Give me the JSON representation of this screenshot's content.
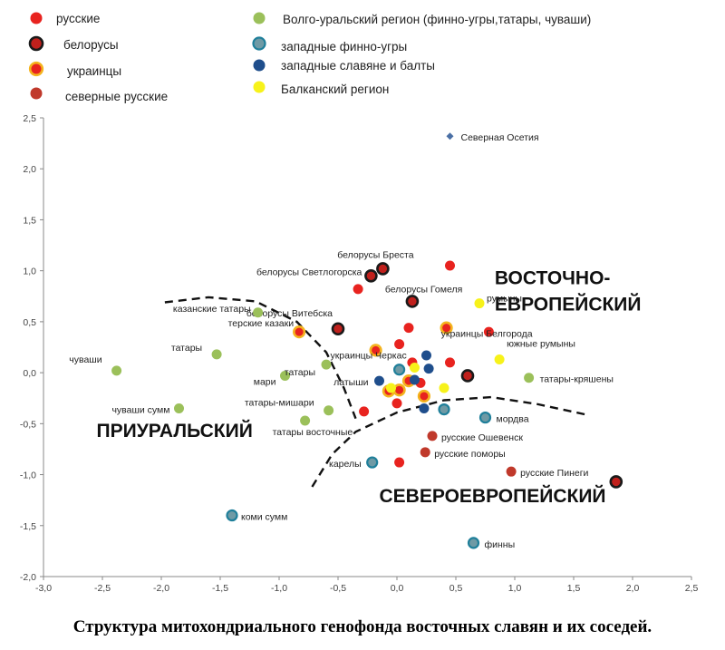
{
  "caption": "Структура митохондриального генофонда восточных славян и их соседей.",
  "colors": {
    "russian": "#e8231f",
    "belarus_fill": "#c0201c",
    "belarus_ring": "#1a1a1a",
    "ukraine_fill": "#e8231f",
    "ukraine_ring": "#f4b31e",
    "north_russian": "#c0392b",
    "volga": "#9bc05a",
    "west_finno_fill": "#6f9aa5",
    "west_finno_ring": "#1f7f9a",
    "west_slav": "#1f4e8c",
    "balkan": "#f7f21a",
    "ossetia": "#4a6fa5"
  },
  "chart_data": {
    "type": "scatter",
    "title": "",
    "xlabel": "",
    "ylabel": "",
    "xlim": [
      -3.0,
      2.5
    ],
    "ylim": [
      -2.0,
      2.5
    ],
    "grid": false,
    "xticks": [
      "-3,0",
      "-2,5",
      "-2,0",
      "-1,5",
      "-1,0",
      "-0,5",
      "0,0",
      "0,5",
      "1,0",
      "1,5",
      "2,0",
      "2,5"
    ],
    "yticks": [
      "2,5",
      "2,0",
      "1,5",
      "1,0",
      "0,5",
      "0,0",
      "-0,5",
      "-1,0",
      "-1,5",
      "-2,0"
    ],
    "legend_position": "top",
    "legend": [
      {
        "key": "russian",
        "label": "русские"
      },
      {
        "key": "belarus",
        "label": "белорусы"
      },
      {
        "key": "ukraine",
        "label": "украинцы"
      },
      {
        "key": "north_russian",
        "label": "северные  русские"
      },
      {
        "key": "volga",
        "label": "Волго-уральский регион (финно-угры,татары, чуваши)"
      },
      {
        "key": "west_finno",
        "label": "западные  финно-угры"
      },
      {
        "key": "west_slav",
        "label": "западные  славяне и балты"
      },
      {
        "key": "balkan",
        "label": "Балканский регион"
      }
    ],
    "regions": [
      {
        "name": "ВОСТОЧНО-",
        "x": 0.83,
        "y": 0.87
      },
      {
        "name": "ЕВРОПЕЙСКИЙ",
        "x": 0.83,
        "y": 0.61
      },
      {
        "name": "ПРИУРАЛЬСКИЙ",
        "x": -2.55,
        "y": -0.63
      },
      {
        "name": "СЕВЕРОЕВРОПЕЙСКИЙ",
        "x": -0.15,
        "y": -1.27
      }
    ],
    "boundaries": [
      [
        [
          -1.97,
          0.69
        ],
        [
          -1.6,
          0.74
        ],
        [
          -1.2,
          0.7
        ],
        [
          -0.85,
          0.5
        ],
        [
          -0.6,
          0.2
        ],
        [
          -0.45,
          -0.15
        ],
        [
          -0.35,
          -0.45
        ]
      ],
      [
        [
          -0.72,
          -1.12
        ],
        [
          -0.55,
          -0.8
        ],
        [
          -0.35,
          -0.58
        ],
        [
          0.0,
          -0.39
        ],
        [
          0.4,
          -0.27
        ],
        [
          0.8,
          -0.24
        ],
        [
          1.2,
          -0.31
        ],
        [
          1.6,
          -0.41
        ]
      ]
    ],
    "points": [
      {
        "x": 0.45,
        "y": 2.32,
        "group": "ossetia",
        "label": "Северная Осетия"
      },
      {
        "x": -0.33,
        "y": 0.82,
        "group": "russian"
      },
      {
        "x": 0.45,
        "y": 1.05,
        "group": "russian"
      },
      {
        "x": 0.1,
        "y": 0.44,
        "group": "russian"
      },
      {
        "x": 0.02,
        "y": 0.28,
        "group": "russian"
      },
      {
        "x": -0.28,
        "y": -0.38,
        "group": "russian"
      },
      {
        "x": 0.13,
        "y": 0.1,
        "group": "russian"
      },
      {
        "x": 0.45,
        "y": 0.1,
        "group": "russian"
      },
      {
        "x": 0.0,
        "y": -0.3,
        "group": "russian"
      },
      {
        "x": 0.2,
        "y": -0.1,
        "group": "russian"
      },
      {
        "x": 0.78,
        "y": 0.4,
        "group": "russian"
      },
      {
        "x": 0.02,
        "y": -0.88,
        "group": "russian"
      },
      {
        "x": -0.22,
        "y": 0.95,
        "group": "belarus",
        "label": "белорусы Светлогорска"
      },
      {
        "x": -0.12,
        "y": 1.02,
        "group": "belarus",
        "label": "белорусы Бреста"
      },
      {
        "x": 0.13,
        "y": 0.7,
        "group": "belarus",
        "label": "белорусы Гомеля"
      },
      {
        "x": -0.5,
        "y": 0.43,
        "group": "belarus",
        "label": "белорусы Витебска"
      },
      {
        "x": 0.6,
        "y": -0.03,
        "group": "belarus"
      },
      {
        "x": 1.86,
        "y": -1.07,
        "group": "belarus"
      },
      {
        "x": -0.83,
        "y": 0.4,
        "group": "ukraine",
        "label": "терские казаки"
      },
      {
        "x": -0.18,
        "y": 0.22,
        "group": "ukraine",
        "label": "украинцы Черкас"
      },
      {
        "x": 0.42,
        "y": 0.44,
        "group": "ukraine",
        "label": "украинцы Белгорода"
      },
      {
        "x": -0.07,
        "y": -0.18,
        "group": "ukraine"
      },
      {
        "x": 0.02,
        "y": -0.17,
        "group": "ukraine"
      },
      {
        "x": 0.23,
        "y": -0.23,
        "group": "ukraine"
      },
      {
        "x": 0.1,
        "y": -0.08,
        "group": "ukraine"
      },
      {
        "x": 0.3,
        "y": -0.62,
        "group": "north_russian",
        "label": "русские Ошевенск"
      },
      {
        "x": 0.24,
        "y": -0.78,
        "group": "north_russian",
        "label": "русские поморы"
      },
      {
        "x": 0.97,
        "y": -0.97,
        "group": "north_russian",
        "label": "русские Пинеги"
      },
      {
        "x": -1.18,
        "y": 0.59,
        "group": "volga",
        "label": "казанские татары"
      },
      {
        "x": -2.38,
        "y": 0.02,
        "group": "volga",
        "label": "чуваши"
      },
      {
        "x": -1.53,
        "y": 0.18,
        "group": "volga",
        "label": "татары"
      },
      {
        "x": -0.95,
        "y": -0.03,
        "group": "volga",
        "label": "мари"
      },
      {
        "x": -0.6,
        "y": 0.08,
        "group": "volga",
        "label": "татары"
      },
      {
        "x": -1.85,
        "y": -0.35,
        "group": "volga",
        "label": "чуваши сумм"
      },
      {
        "x": -0.58,
        "y": -0.37,
        "group": "volga",
        "label": "татары-мишари"
      },
      {
        "x": -0.78,
        "y": -0.47,
        "group": "volga",
        "label": "татары восточные"
      },
      {
        "x": 1.12,
        "y": -0.05,
        "group": "volga",
        "label": "татары-кряшены"
      },
      {
        "x": 0.02,
        "y": 0.03,
        "group": "west_finno"
      },
      {
        "x": 0.4,
        "y": -0.36,
        "group": "west_finno"
      },
      {
        "x": 0.75,
        "y": -0.44,
        "group": "west_finno",
        "label": "мордва"
      },
      {
        "x": -0.21,
        "y": -0.88,
        "group": "west_finno",
        "label": "карелы"
      },
      {
        "x": -1.4,
        "y": -1.4,
        "group": "west_finno",
        "label": "коми сумм"
      },
      {
        "x": 0.65,
        "y": -1.67,
        "group": "west_finno",
        "label": "финны"
      },
      {
        "x": -0.15,
        "y": -0.08,
        "group": "west_slav",
        "label": "латыши"
      },
      {
        "x": 0.25,
        "y": 0.17,
        "group": "west_slav"
      },
      {
        "x": 0.27,
        "y": 0.04,
        "group": "west_slav"
      },
      {
        "x": 0.15,
        "y": -0.07,
        "group": "west_slav"
      },
      {
        "x": 0.23,
        "y": -0.35,
        "group": "west_slav"
      },
      {
        "x": 0.7,
        "y": 0.68,
        "group": "balkan",
        "label": "румыны"
      },
      {
        "x": 0.87,
        "y": 0.13,
        "group": "balkan",
        "label": "южные румыны"
      },
      {
        "x": 0.4,
        "y": -0.15,
        "group": "balkan"
      },
      {
        "x": -0.05,
        "y": -0.15,
        "group": "balkan"
      },
      {
        "x": 0.15,
        "y": 0.05,
        "group": "balkan"
      }
    ]
  }
}
